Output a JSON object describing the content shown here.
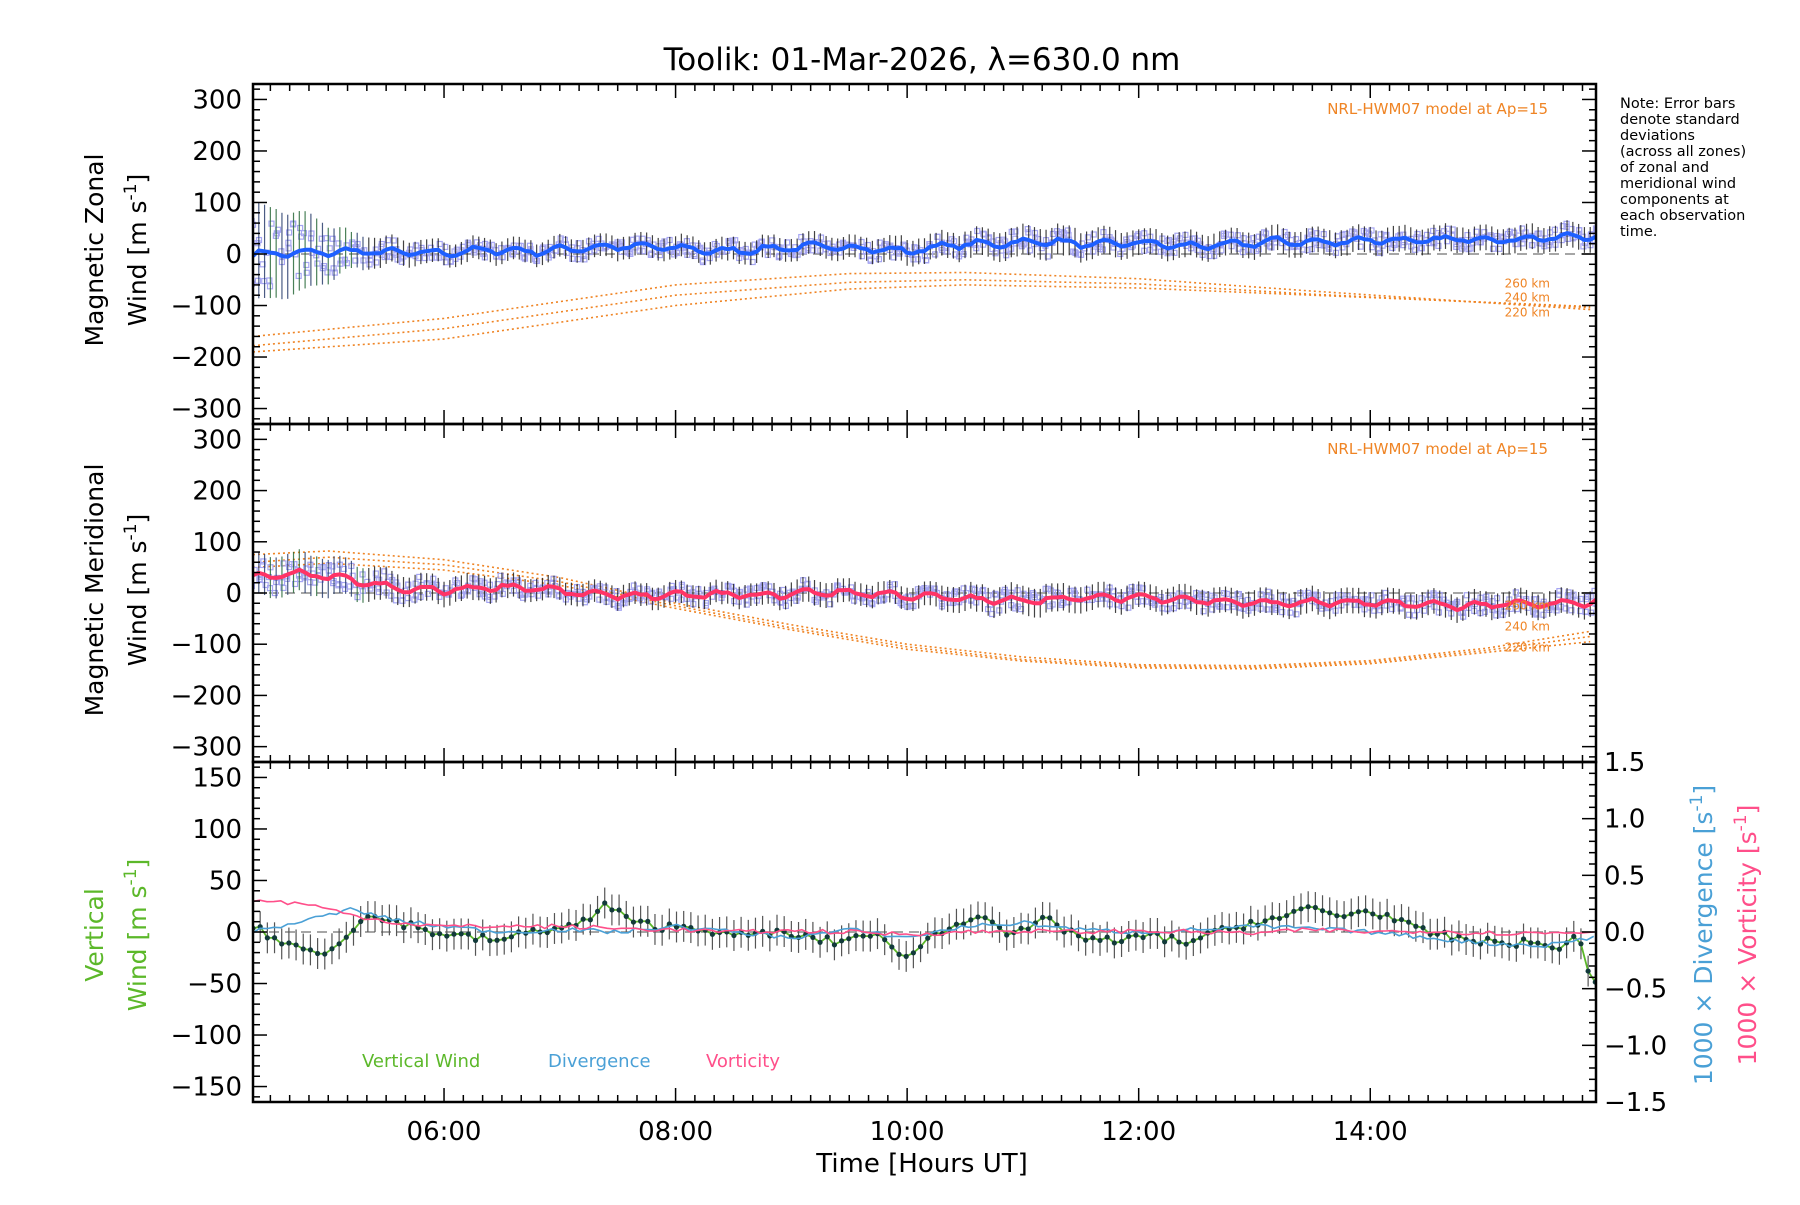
{
  "chart_data": {
    "type": "line",
    "title": "Toolik: 01-Mar-2026, λ=630.0 nm",
    "xlabel": "Time [Hours UT]",
    "xlim": [
      4.35,
      15.95
    ],
    "x_ticks": [
      6,
      8,
      10,
      12,
      14
    ],
    "x_tick_labels": [
      "06:00",
      "08:00",
      "10:00",
      "12:00",
      "14:00"
    ],
    "note": [
      "Note: Error bars",
      "denote standard",
      "deviations",
      "(across all zones)",
      "of zonal and",
      "meridional wind",
      "components at",
      "each observation",
      "time."
    ],
    "colors": {
      "zonal": "#1e5fff",
      "meridional": "#ff3366",
      "vertical": "#5cb82a",
      "divergence": "#4aa0d6",
      "vorticity": "#ff4f8a",
      "model": "#ef8424",
      "zone_marker": "#a6a6f2",
      "errorbar": "#222222"
    },
    "panels": [
      {
        "id": "zonal",
        "ylabel_line1": "Magnetic Zonal",
        "ylabel_line2": "Wind [m s",
        "ylabel_sup": "-1",
        "ylabel_close": "]",
        "ylim": [
          -330,
          330
        ],
        "y_ticks": [
          -300,
          -200,
          -100,
          0,
          100,
          200,
          300
        ],
        "y_tick_labels": [
          "−300",
          "−200",
          "−100",
          "0",
          "100",
          "200",
          "300"
        ],
        "model_label": "NRL-HWM07 model at Ap=15",
        "model_curves": [
          {
            "label": "260 km",
            "x": [
              4.35,
              6,
              8,
              9.5,
              10.5,
              12,
              13.5,
              15.9
            ],
            "y": [
              -160,
              -125,
              -60,
              -38,
              -36,
              -48,
              -72,
              -108
            ]
          },
          {
            "label": "240 km",
            "x": [
              4.35,
              6,
              8,
              9.5,
              10.5,
              12,
              13.5,
              15.9
            ],
            "y": [
              -178,
              -145,
              -80,
              -55,
              -50,
              -58,
              -78,
              -104
            ]
          },
          {
            "label": "220 km",
            "x": [
              4.35,
              6,
              8,
              9.5,
              10.5,
              12,
              13.5,
              15.9
            ],
            "y": [
              -190,
              -165,
              -100,
              -68,
              -60,
              -66,
              -80,
              -102
            ]
          }
        ],
        "series": {
          "name": "Zonal wind",
          "x": [
            4.35,
            4.8,
            5.2,
            5.6,
            6.0,
            6.4,
            6.8,
            7.2,
            7.6,
            8.0,
            8.4,
            8.8,
            9.2,
            9.6,
            10.0,
            10.4,
            10.8,
            11.2,
            11.6,
            12.0,
            12.4,
            12.8,
            13.2,
            13.6,
            14.0,
            14.4,
            14.8,
            15.2,
            15.6,
            15.9
          ],
          "y": [
            0,
            2,
            5,
            3,
            2,
            8,
            5,
            12,
            15,
            12,
            5,
            10,
            15,
            12,
            5,
            18,
            20,
            25,
            18,
            22,
            15,
            18,
            25,
            22,
            28,
            25,
            30,
            28,
            32,
            35
          ],
          "error": [
            95,
            75,
            35,
            25,
            22,
            22,
            22,
            22,
            22,
            22,
            22,
            22,
            22,
            22,
            25,
            25,
            28,
            30,
            28,
            25,
            25,
            25,
            25,
            25,
            25,
            25,
            25,
            25,
            25,
            25
          ]
        }
      },
      {
        "id": "meridional",
        "ylabel_line1": "Magnetic Meridional",
        "ylabel_line2": "Wind [m s",
        "ylabel_sup": "-1",
        "ylabel_close": "]",
        "ylim": [
          -330,
          330
        ],
        "y_ticks": [
          -300,
          -200,
          -100,
          0,
          100,
          200,
          300
        ],
        "y_tick_labels": [
          "−300",
          "−200",
          "−100",
          "0",
          "100",
          "200",
          "300"
        ],
        "model_label": "NRL-HWM07 model at Ap=15",
        "model_curves": [
          {
            "label": "260 km",
            "x": [
              4.35,
              5,
              6,
              7,
              8,
              9,
              10,
              11,
              12,
              13,
              14,
              15,
              15.9
            ],
            "y": [
              75,
              82,
              65,
              30,
              -20,
              -62,
              -100,
              -125,
              -140,
              -142,
              -132,
              -108,
              -75
            ]
          },
          {
            "label": "240 km",
            "x": [
              4.35,
              5,
              6,
              7,
              8,
              9,
              10,
              11,
              12,
              13,
              14,
              15,
              15.9
            ],
            "y": [
              60,
              70,
              55,
              22,
              -25,
              -68,
              -105,
              -130,
              -143,
              -145,
              -135,
              -112,
              -85
            ]
          },
          {
            "label": "220 km",
            "x": [
              4.35,
              5,
              6,
              7,
              8,
              9,
              10,
              11,
              12,
              13,
              14,
              15,
              15.9
            ],
            "y": [
              50,
              58,
              45,
              15,
              -30,
              -72,
              -110,
              -133,
              -146,
              -148,
              -138,
              -116,
              -95
            ]
          }
        ],
        "series": {
          "name": "Meridional wind",
          "x": [
            4.35,
            4.8,
            5.2,
            5.6,
            6.0,
            6.4,
            6.8,
            7.2,
            7.6,
            8.0,
            8.4,
            8.8,
            9.2,
            9.6,
            10.0,
            10.4,
            10.8,
            11.2,
            11.6,
            12.0,
            12.4,
            12.8,
            13.2,
            13.6,
            14.0,
            14.4,
            14.8,
            15.2,
            15.6,
            15.9
          ],
          "y": [
            30,
            38,
            25,
            8,
            5,
            12,
            10,
            -2,
            -5,
            -5,
            -3,
            -5,
            2,
            0,
            -5,
            -10,
            -15,
            -12,
            -10,
            -8,
            -12,
            -18,
            -20,
            -18,
            -20,
            -22,
            -25,
            -22,
            -22,
            -18
          ],
          "error": [
            40,
            40,
            35,
            30,
            25,
            25,
            22,
            22,
            22,
            22,
            22,
            22,
            25,
            22,
            22,
            25,
            28,
            28,
            25,
            25,
            25,
            25,
            25,
            25,
            25,
            25,
            25,
            25,
            25,
            25
          ]
        }
      },
      {
        "id": "vertical",
        "ylabel_line1": "Vertical",
        "ylabel_line2": "Wind [m s",
        "ylabel_sup": "-1",
        "ylabel_close": "]",
        "ylim": [
          -165,
          165
        ],
        "y_ticks": [
          -150,
          -100,
          -50,
          0,
          50,
          100,
          150
        ],
        "y_tick_labels": [
          "−150",
          "−100",
          "−50",
          "0",
          "50",
          "100",
          "150"
        ],
        "right_axis": {
          "ylim": [
            -1.5,
            1.5
          ],
          "ticks": [
            -1.5,
            -1.0,
            -0.5,
            0.0,
            0.5,
            1.0,
            1.5
          ],
          "tick_labels": [
            "−1.5",
            "−1.0",
            "−0.5",
            "0.0",
            "0.5",
            "1.0",
            "1.5"
          ],
          "label_div": "1000 × Divergence [s",
          "label_vort": "1000 × Vorticity [s",
          "label_sup": "-1",
          "label_close": "]"
        },
        "legend": [
          "Vertical Wind",
          "Divergence",
          "Vorticity"
        ],
        "series": [
          {
            "name": "Vertical Wind",
            "x": [
              4.35,
              4.6,
              4.9,
              5.05,
              5.3,
              5.6,
              5.9,
              6.2,
              6.5,
              6.8,
              7.1,
              7.3,
              7.4,
              7.6,
              7.9,
              8.2,
              8.5,
              8.8,
              9.1,
              9.4,
              9.7,
              9.95,
              10.2,
              10.5,
              10.65,
              10.9,
              11.2,
              11.5,
              11.8,
              12.1,
              12.4,
              12.7,
              13.0,
              13.3,
              13.5,
              13.7,
              13.9,
              14.1,
              14.4,
              14.7,
              15.0,
              15.3,
              15.6,
              15.8,
              15.9
            ],
            "y": [
              5,
              -10,
              -20,
              -15,
              15,
              10,
              0,
              -5,
              -8,
              2,
              5,
              15,
              28,
              10,
              5,
              5,
              -5,
              0,
              -5,
              -10,
              0,
              -25,
              -5,
              10,
              20,
              -5,
              12,
              -5,
              -10,
              -3,
              -10,
              0,
              10,
              15,
              25,
              15,
              20,
              18,
              2,
              -5,
              -10,
              -10,
              -15,
              -5,
              -45
            ],
            "error": 15
          },
          {
            "name": "Divergence",
            "x": [
              4.35,
              4.8,
              5.2,
              5.6,
              6.0,
              6.5,
              7.0,
              7.5,
              8.0,
              8.5,
              9.0,
              9.5,
              10.0,
              10.5,
              11.0,
              11.5,
              12.0,
              12.5,
              13.0,
              13.5,
              14.0,
              14.5,
              15.0,
              15.5,
              15.9
            ],
            "y": [
              0.0,
              0.1,
              0.2,
              0.1,
              0.05,
              0.0,
              0.02,
              0.0,
              0.05,
              0.0,
              -0.05,
              0.02,
              -0.05,
              0.05,
              0.08,
              0.02,
              0.0,
              0.02,
              0.05,
              0.03,
              0.0,
              -0.05,
              -0.1,
              -0.12,
              -0.05
            ]
          },
          {
            "name": "Vorticity",
            "x": [
              4.35,
              4.8,
              5.2,
              5.6,
              6.0,
              6.5,
              7.0,
              7.5,
              8.0,
              8.5,
              9.0,
              9.5,
              10.0,
              10.5,
              11.0,
              11.5,
              12.0,
              12.5,
              13.0,
              13.5,
              14.0,
              14.5,
              15.0,
              15.5,
              15.9
            ],
            "y": [
              0.28,
              0.25,
              0.15,
              0.08,
              0.05,
              0.05,
              0.05,
              0.03,
              0.02,
              0.0,
              0.01,
              0.0,
              -0.02,
              0.0,
              0.01,
              0.0,
              0.01,
              0.0,
              -0.01,
              0.02,
              0.0,
              0.01,
              -0.01,
              -0.01,
              0.0
            ]
          }
        ]
      }
    ]
  }
}
